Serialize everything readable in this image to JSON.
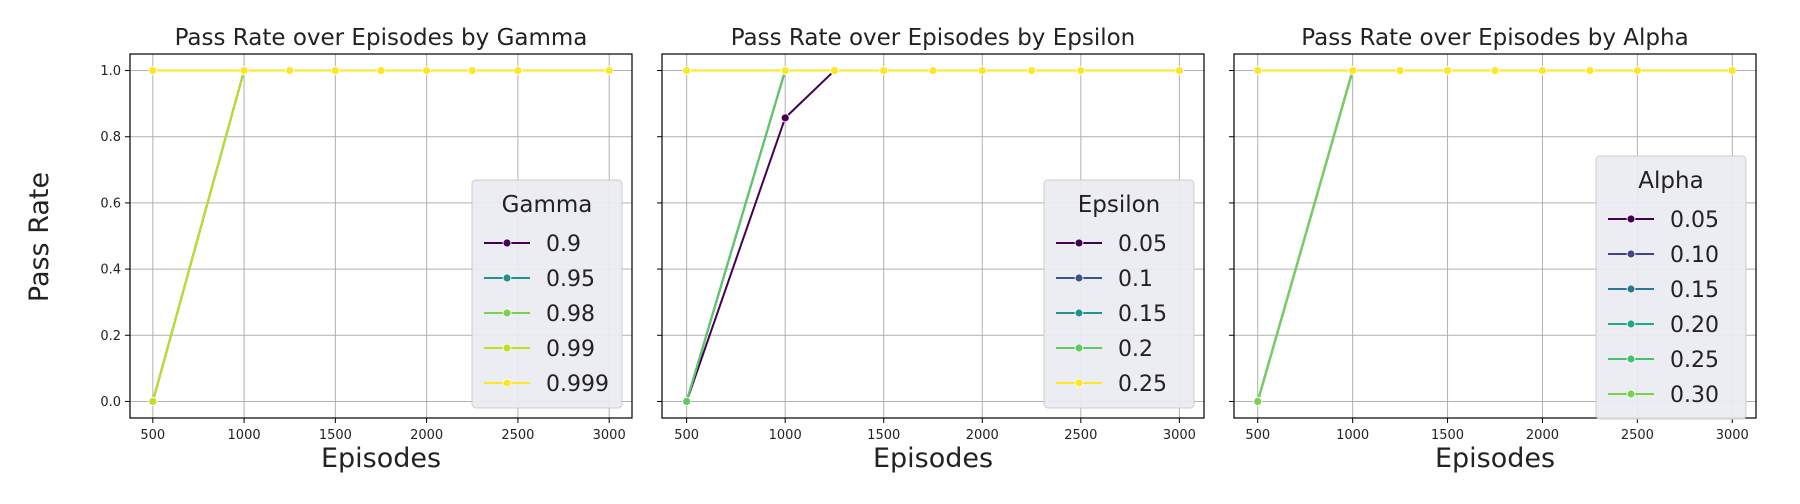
{
  "figure": {
    "shared_ylabel": "Pass Rate"
  },
  "chart_data": [
    {
      "type": "line",
      "title": "Pass Rate over Episodes by Gamma",
      "xlabel": "Episodes",
      "ylabel": "Pass Rate",
      "xlim": [
        375,
        3125
      ],
      "ylim": [
        -0.05,
        1.05
      ],
      "x_ticks": [
        500,
        1000,
        1500,
        2000,
        2500,
        3000
      ],
      "y_ticks": [
        0.0,
        0.2,
        0.4,
        0.6,
        0.8,
        1.0
      ],
      "grid": true,
      "legend": {
        "title": "Gamma",
        "placement": "lower-right"
      },
      "series": [
        {
          "name": "0.9",
          "color": "#440154",
          "x": [
            500,
            1000
          ],
          "y": [
            0.0,
            1.0
          ]
        },
        {
          "name": "0.95",
          "color": "#21918c",
          "x": [
            500,
            1000
          ],
          "y": [
            0.0,
            1.0
          ]
        },
        {
          "name": "0.98",
          "color": "#7ad151",
          "x": [
            500,
            1000
          ],
          "y": [
            0.0,
            1.0
          ]
        },
        {
          "name": "0.99",
          "color": "#bddf26",
          "x": [
            500,
            1000
          ],
          "y": [
            0.0,
            1.0
          ]
        },
        {
          "name": "0.999",
          "color": "#fde725",
          "x": [
            500,
            1000,
            1250,
            1500,
            1750,
            2000,
            2250,
            2500,
            3000
          ],
          "y": [
            1.0,
            1.0,
            1.0,
            1.0,
            1.0,
            1.0,
            1.0,
            1.0,
            1.0
          ]
        }
      ]
    },
    {
      "type": "line",
      "title": "Pass Rate over Episodes by Epsilon",
      "xlabel": "Episodes",
      "ylabel": "",
      "xlim": [
        375,
        3125
      ],
      "ylim": [
        -0.05,
        1.05
      ],
      "x_ticks": [
        500,
        1000,
        1500,
        2000,
        2500,
        3000
      ],
      "y_ticks": [
        0.0,
        0.2,
        0.4,
        0.6,
        0.8,
        1.0
      ],
      "grid": true,
      "legend": {
        "title": "Epsilon",
        "placement": "lower-right"
      },
      "series": [
        {
          "name": "0.05",
          "color": "#440154",
          "x": [
            500,
            1000,
            1250
          ],
          "y": [
            0.0,
            0.857,
            1.0
          ]
        },
        {
          "name": "0.1",
          "color": "#3b528b",
          "x": [
            500,
            1000
          ],
          "y": [
            0.0,
            1.0
          ]
        },
        {
          "name": "0.15",
          "color": "#21918c",
          "x": [
            500,
            1000
          ],
          "y": [
            0.0,
            1.0
          ]
        },
        {
          "name": "0.2",
          "color": "#5ec962",
          "x": [
            500,
            1000
          ],
          "y": [
            0.0,
            1.0
          ]
        },
        {
          "name": "0.25",
          "color": "#fde725",
          "x": [
            500,
            1000,
            1250,
            1500,
            1750,
            2000,
            2250,
            2500,
            3000
          ],
          "y": [
            1.0,
            1.0,
            1.0,
            1.0,
            1.0,
            1.0,
            1.0,
            1.0,
            1.0
          ]
        }
      ]
    },
    {
      "type": "line",
      "title": "Pass Rate over Episodes by Alpha",
      "xlabel": "Episodes",
      "ylabel": "",
      "xlim": [
        375,
        3125
      ],
      "ylim": [
        -0.05,
        1.05
      ],
      "x_ticks": [
        500,
        1000,
        1500,
        2000,
        2500,
        3000
      ],
      "y_ticks": [
        0.0,
        0.2,
        0.4,
        0.6,
        0.8,
        1.0
      ],
      "grid": true,
      "legend": {
        "title": "Alpha",
        "placement": "center-right"
      },
      "series": [
        {
          "name": "0.05",
          "color": "#440154",
          "x": [
            500,
            1000
          ],
          "y": [
            0.0,
            1.0
          ]
        },
        {
          "name": "0.10",
          "color": "#414487",
          "x": [
            500,
            1000
          ],
          "y": [
            0.0,
            1.0
          ]
        },
        {
          "name": "0.15",
          "color": "#2a788e",
          "x": [
            500,
            1000
          ],
          "y": [
            0.0,
            1.0
          ]
        },
        {
          "name": "0.20",
          "color": "#22a884",
          "x": [
            500,
            1000
          ],
          "y": [
            0.0,
            1.0
          ]
        },
        {
          "name": "0.25",
          "color": "#44bf70",
          "x": [
            500,
            1000
          ],
          "y": [
            0.0,
            1.0
          ]
        },
        {
          "name": "0.30",
          "color": "#7ad151",
          "x": [
            500,
            1000
          ],
          "y": [
            0.0,
            1.0
          ]
        },
        {
          "name": "",
          "color": "#fde725",
          "x": [
            500,
            1000,
            1250,
            1500,
            1750,
            2000,
            2250,
            2500,
            3000
          ],
          "y": [
            1.0,
            1.0,
            1.0,
            1.0,
            1.0,
            1.0,
            1.0,
            1.0,
            1.0
          ]
        }
      ]
    }
  ]
}
